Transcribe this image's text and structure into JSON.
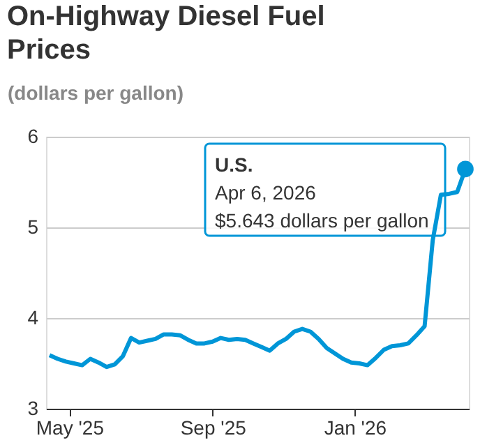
{
  "chart_data": {
    "type": "line",
    "title": "On-Highway Diesel Fuel Prices",
    "ylabel": "(dollars per gallon)",
    "x": [
      "2025-04-14",
      "2025-04-21",
      "2025-04-28",
      "2025-05-05",
      "2025-05-12",
      "2025-05-19",
      "2025-05-26",
      "2025-06-02",
      "2025-06-09",
      "2025-06-16",
      "2025-06-23",
      "2025-06-30",
      "2025-07-07",
      "2025-07-14",
      "2025-07-21",
      "2025-07-28",
      "2025-08-04",
      "2025-08-11",
      "2025-08-18",
      "2025-08-25",
      "2025-09-01",
      "2025-09-08",
      "2025-09-15",
      "2025-09-22",
      "2025-09-29",
      "2025-10-06",
      "2025-10-13",
      "2025-10-20",
      "2025-10-27",
      "2025-11-03",
      "2025-11-10",
      "2025-11-17",
      "2025-11-24",
      "2025-12-01",
      "2025-12-08",
      "2025-12-15",
      "2025-12-22",
      "2025-12-29",
      "2026-01-05",
      "2026-01-12",
      "2026-01-19",
      "2026-01-26",
      "2026-02-02",
      "2026-02-09",
      "2026-02-16",
      "2026-02-23",
      "2026-03-02",
      "2026-03-09",
      "2026-03-16",
      "2026-03-23",
      "2026-03-30",
      "2026-04-06"
    ],
    "series": [
      {
        "name": "U.S.",
        "color": "#0096d7",
        "values": [
          3.59,
          3.55,
          3.52,
          3.5,
          3.48,
          3.55,
          3.51,
          3.46,
          3.49,
          3.58,
          3.78,
          3.73,
          3.75,
          3.77,
          3.82,
          3.82,
          3.81,
          3.76,
          3.72,
          3.72,
          3.74,
          3.78,
          3.76,
          3.77,
          3.76,
          3.72,
          3.68,
          3.64,
          3.72,
          3.77,
          3.85,
          3.88,
          3.85,
          3.77,
          3.67,
          3.61,
          3.55,
          3.51,
          3.5,
          3.48,
          3.56,
          3.65,
          3.69,
          3.7,
          3.72,
          3.81,
          3.91,
          4.86,
          5.36,
          5.37,
          5.39,
          5.643
        ]
      }
    ],
    "xlim": [
      "2025-04-11",
      "2026-04-09"
    ],
    "xticks": [
      {
        "value": "2025-05-01",
        "label": "May '25"
      },
      {
        "value": "2025-09-01",
        "label": "Sep '25"
      },
      {
        "value": "2026-01-01",
        "label": "Jan '26"
      }
    ],
    "ylim": [
      3,
      6
    ],
    "yticks": [
      3,
      4,
      5,
      6
    ],
    "grid": "y",
    "marker": "none",
    "line_style": "solid",
    "legend": false,
    "annotations": [
      "Apr 6, 2026",
      "$5.643 dollars per gallon"
    ]
  }
}
